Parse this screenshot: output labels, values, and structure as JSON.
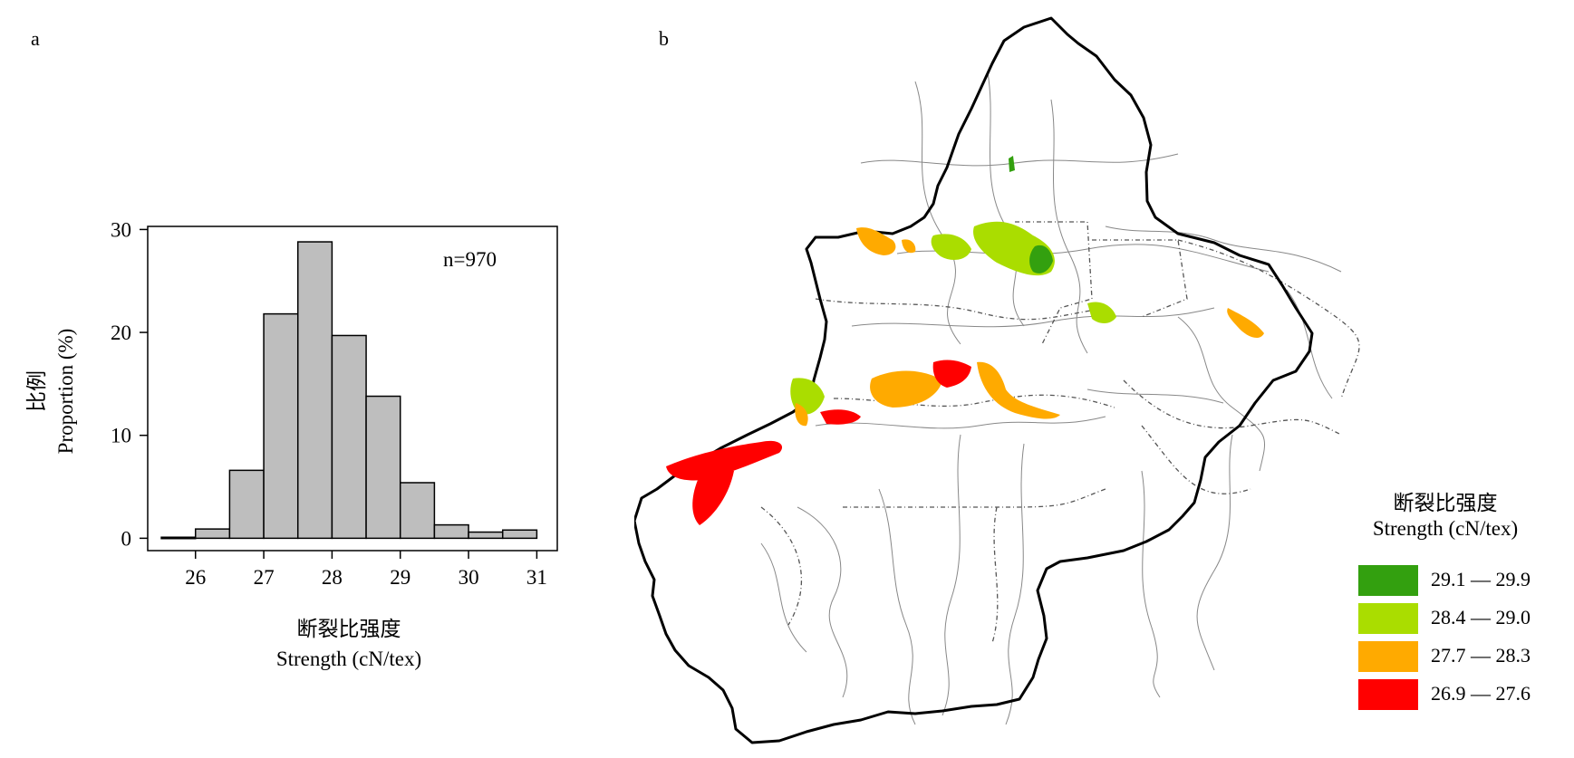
{
  "panels": {
    "a": "a",
    "b": "b"
  },
  "chart_data": [
    {
      "type": "bar",
      "panel": "a",
      "annotation": "n=970",
      "xlabel_cn": "断裂比强度",
      "xlabel_en": "Strength (cN/tex)",
      "ylabel_cn": "比例",
      "ylabel_en": "Proportion (%)",
      "xlim": [
        25.3,
        31.3
      ],
      "ylim": [
        -1.2,
        30.3
      ],
      "x_ticks": [
        26,
        27,
        28,
        29,
        30,
        31
      ],
      "x_tick_labels": [
        "26",
        "27",
        "28",
        "29",
        "30",
        "31"
      ],
      "y_ticks": [
        0,
        10,
        20,
        30
      ],
      "y_tick_labels": [
        "0",
        "10",
        "20",
        "30"
      ],
      "bin_edges": [
        25.5,
        26.0,
        26.5,
        27.0,
        27.5,
        28.0,
        28.5,
        29.0,
        29.5,
        30.0,
        30.5,
        31.0
      ],
      "values": [
        0.1,
        0.9,
        6.6,
        21.8,
        28.8,
        19.7,
        13.8,
        5.4,
        1.3,
        0.6,
        0.8
      ],
      "bar_color": "#bebebe",
      "grid": false
    },
    {
      "type": "map",
      "panel": "b",
      "legend_title_cn": "断裂比强度",
      "legend_title_en": "Strength (cN/tex)",
      "legend_placement": "bottom-right",
      "legend": [
        {
          "label": "29.1 — 29.9",
          "color": "#33a00f"
        },
        {
          "label": "28.4 — 29.0",
          "color": "#aadd00"
        },
        {
          "label": "27.7 — 28.3",
          "color": "#ffaa00"
        },
        {
          "label": "26.9 — 27.6",
          "color": "#ff0000"
        }
      ]
    }
  ]
}
